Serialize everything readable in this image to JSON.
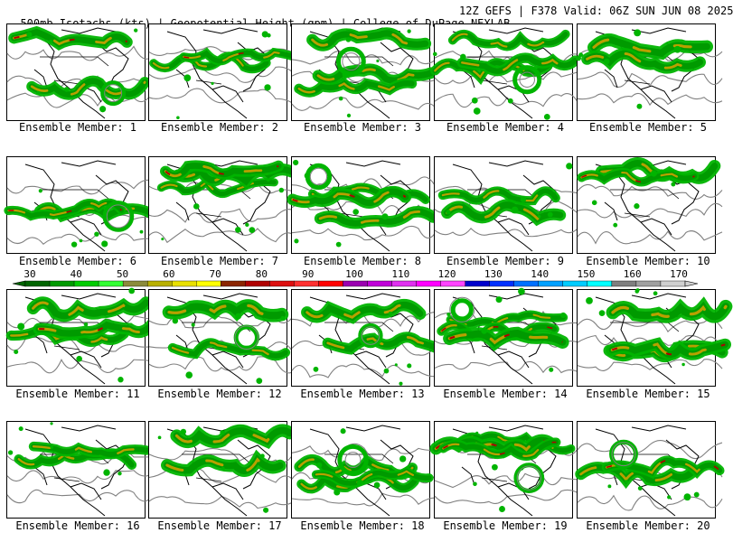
{
  "header": {
    "title_left": "500mb Isotachs (kts) | Geopotential Height (gpm) | College of DuPage NEXLAB",
    "title_right": "12Z GEFS | F378 Valid: 06Z SUN JUN 08 2025"
  },
  "colorbar": {
    "ticks": [
      "30",
      "40",
      "50",
      "60",
      "70",
      "80",
      "90",
      "100",
      "110",
      "120",
      "130",
      "140",
      "150",
      "160",
      "170"
    ],
    "colors": [
      "#006400",
      "#009a00",
      "#00cc00",
      "#33ff33",
      "#8b8b3c",
      "#b8b000",
      "#e8e000",
      "#ffff00",
      "#8b2500",
      "#b00000",
      "#dd1010",
      "#ff3030",
      "#ff0000",
      "#9b00b0",
      "#c000d8",
      "#e030f0",
      "#ff00ff",
      "#ff44ff",
      "#0000cc",
      "#0030ff",
      "#0070ff",
      "#00a0ff",
      "#00ccff",
      "#00ffff",
      "#7f7f7f",
      "#a0a0a0",
      "#d0d0d0"
    ]
  },
  "members": [
    {
      "label": "Ensemble Member: 1"
    },
    {
      "label": "Ensemble Member: 2"
    },
    {
      "label": "Ensemble Member: 3"
    },
    {
      "label": "Ensemble Member: 4"
    },
    {
      "label": "Ensemble Member: 5"
    },
    {
      "label": "Ensemble Member: 6"
    },
    {
      "label": "Ensemble Member: 7"
    },
    {
      "label": "Ensemble Member: 8"
    },
    {
      "label": "Ensemble Member: 9"
    },
    {
      "label": "Ensemble Member: 10"
    },
    {
      "label": "Ensemble Member: 11"
    },
    {
      "label": "Ensemble Member: 12"
    },
    {
      "label": "Ensemble Member: 13"
    },
    {
      "label": "Ensemble Member: 14"
    },
    {
      "label": "Ensemble Member: 15"
    },
    {
      "label": "Ensemble Member: 16"
    },
    {
      "label": "Ensemble Member: 17"
    },
    {
      "label": "Ensemble Member: 18"
    },
    {
      "label": "Ensemble Member: 19"
    },
    {
      "label": "Ensemble Member: 20"
    }
  ],
  "map_colors": {
    "jet_weak": "#00b400",
    "jet_mid": "#009a00",
    "jet_core": "#b8a000",
    "jet_max": "#b00000",
    "height_contour": "#808080",
    "coastline": "#000000"
  }
}
